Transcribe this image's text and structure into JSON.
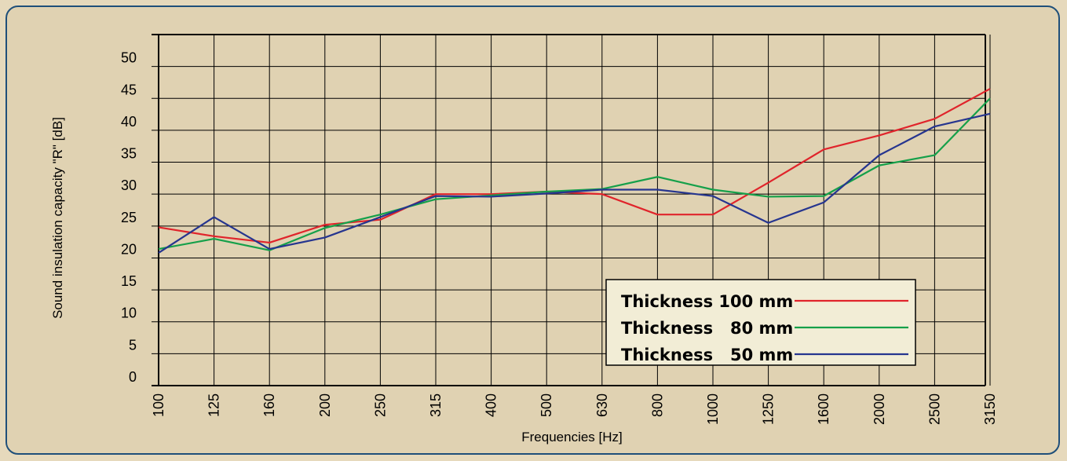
{
  "colors": {
    "page_bg": "#e6d9bc",
    "panel_bg": "#e0d2b2",
    "panel_border": "#1f4f7a",
    "legend_bg": "#f2edd6",
    "grid": "#000000"
  },
  "chart_data": {
    "type": "line",
    "xlabel": "Frequencies [Hz]",
    "ylabel": "Sound insulation capacity \"R\" [dB]",
    "categories": [
      "100",
      "125",
      "160",
      "200",
      "250",
      "315",
      "400",
      "500",
      "630",
      "800",
      "1000",
      "1250",
      "1600",
      "2000",
      "2500",
      "3150"
    ],
    "y_ticks": [
      0,
      5,
      10,
      15,
      20,
      25,
      30,
      35,
      40,
      45,
      50
    ],
    "ylim": [
      0,
      55
    ],
    "grid": true,
    "legend_position": "bottom-right",
    "series": [
      {
        "name": "Thickness 100 mm",
        "color": "#e0242b",
        "values": [
          24.8,
          23.4,
          22.4,
          25.2,
          26.0,
          30.0,
          30.0,
          30.4,
          30.0,
          26.8,
          26.8,
          31.8,
          37.0,
          39.2,
          41.8,
          46.5
        ]
      },
      {
        "name": "Thickness   80 mm",
        "color": "#15a04a",
        "values": [
          21.4,
          23.0,
          21.2,
          24.7,
          26.8,
          29.2,
          29.8,
          30.4,
          30.8,
          32.7,
          30.7,
          29.6,
          29.7,
          34.5,
          36.1,
          45.0
        ]
      },
      {
        "name": "Thickness   50 mm",
        "color": "#26358f",
        "values": [
          20.8,
          26.4,
          21.4,
          23.2,
          26.4,
          29.7,
          29.6,
          30.1,
          30.7,
          30.7,
          29.7,
          25.5,
          28.7,
          36.1,
          40.6,
          42.6
        ]
      }
    ]
  }
}
